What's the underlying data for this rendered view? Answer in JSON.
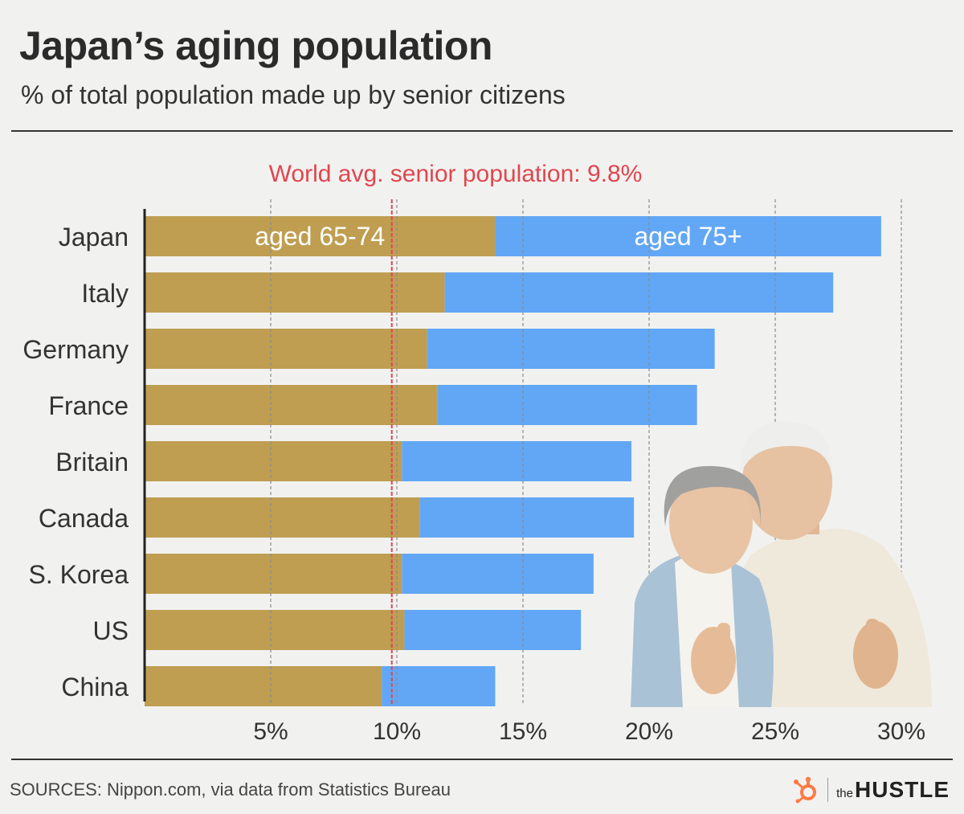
{
  "header": {
    "title": "Japan’s aging population",
    "subtitle": "% of total population made up by senior citizens"
  },
  "footer": {
    "sources": "SOURCES: Nippon.com, via data from Statistics Bureau",
    "brand_the": "the",
    "brand_name": "HUSTLE"
  },
  "colors": {
    "aged_65_74": "#bf9e51",
    "aged_75_plus": "#62a7f6",
    "world_avg_line": "#e0464f",
    "grid": "#8c8c8c",
    "brand_accent": "#ff7a45"
  },
  "icons": [
    "hubspot-sprocket-icon"
  ],
  "chart_data": {
    "type": "bar",
    "orientation": "horizontal",
    "stacked": true,
    "categories": [
      "Japan",
      "Italy",
      "Germany",
      "France",
      "Britain",
      "Canada",
      "S. Korea",
      "US",
      "China"
    ],
    "series": [
      {
        "name": "aged 65-74",
        "values": [
          13.9,
          11.9,
          11.2,
          11.6,
          10.2,
          10.9,
          10.2,
          10.3,
          9.4
        ]
      },
      {
        "name": "aged 75+",
        "values": [
          15.3,
          15.4,
          11.4,
          10.3,
          9.1,
          8.5,
          7.6,
          7.0,
          4.5
        ]
      }
    ],
    "xlim": [
      0,
      31
    ],
    "x_ticks": [
      5,
      10,
      15,
      20,
      25,
      30
    ],
    "x_tick_labels": [
      "5%",
      "10%",
      "15%",
      "20%",
      "25%",
      "30%"
    ],
    "grid": true,
    "reference_line": {
      "value": 9.8,
      "label": "World avg. senior population: 9.8%"
    },
    "legend": "inline labels in the Japan bar"
  }
}
